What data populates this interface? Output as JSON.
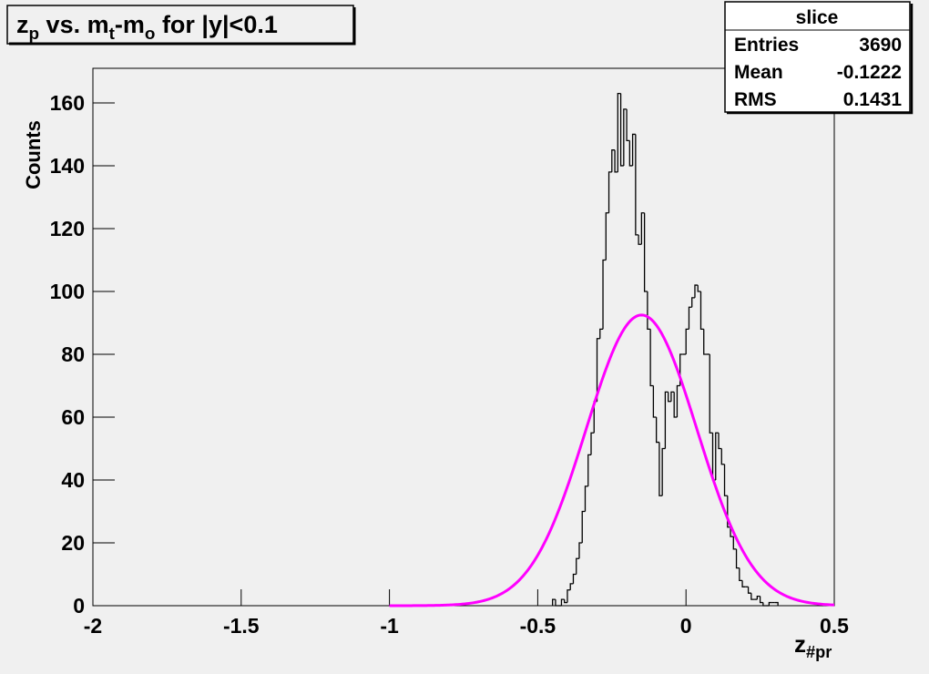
{
  "chart_data": {
    "type": "histogram",
    "title": [
      {
        "text": "z"
      },
      {
        "text": "p",
        "sub": true
      },
      {
        "text": " vs. m"
      },
      {
        "text": "t",
        "sub": true
      },
      {
        "text": "-m"
      },
      {
        "text": "o",
        "sub": true
      },
      {
        "text": " for |y|<0.1"
      }
    ],
    "x_label": [
      {
        "text": "z"
      },
      {
        "text": "#pr",
        "sub": true
      }
    ],
    "y_label": "Counts",
    "bins": [
      -0.45,
      -0.44,
      -0.43,
      -0.42,
      -0.41,
      -0.4,
      -0.39,
      -0.38,
      -0.37,
      -0.36,
      -0.35,
      -0.34,
      -0.33,
      -0.32,
      -0.31,
      -0.3,
      -0.29,
      -0.28,
      -0.27,
      -0.26,
      -0.25,
      -0.24,
      -0.23,
      -0.22,
      -0.21,
      -0.2,
      -0.19,
      -0.18,
      -0.17,
      -0.16,
      -0.15,
      -0.14,
      -0.13,
      -0.12,
      -0.11,
      -0.1,
      -0.09,
      -0.08,
      -0.07,
      -0.06,
      -0.05,
      -0.04,
      -0.03,
      -0.02,
      -0.01,
      0.0,
      0.01,
      0.02,
      0.03,
      0.04,
      0.05,
      0.06,
      0.07,
      0.08,
      0.09,
      0.1,
      0.11,
      0.12,
      0.13,
      0.14,
      0.15,
      0.16,
      0.17,
      0.18,
      0.19,
      0.2,
      0.21,
      0.22,
      0.23,
      0.24,
      0.25,
      0.26,
      0.27,
      0.28,
      0.29,
      0.3,
      0.31
    ],
    "values": [
      2,
      0,
      0,
      2,
      1,
      5,
      7,
      10,
      15,
      20,
      30,
      38,
      48,
      55,
      65,
      85,
      88,
      110,
      125,
      138,
      145,
      138,
      163,
      140,
      158,
      148,
      140,
      150,
      118,
      115,
      125,
      100,
      88,
      70,
      60,
      52,
      35,
      50,
      68,
      65,
      68,
      60,
      70,
      80,
      80,
      88,
      95,
      98,
      102,
      100,
      88,
      80,
      80,
      55,
      40,
      55,
      50,
      45,
      35,
      25,
      22,
      18,
      12,
      8,
      6,
      6,
      4,
      2,
      2,
      3,
      1,
      0,
      0,
      1,
      1,
      1
    ],
    "color": "#000000",
    "fit": {
      "constant": 92.5,
      "mean": -0.15,
      "sigma": 0.187,
      "range": [
        -1,
        0.5
      ],
      "color": "#ff00ff"
    },
    "stats": {
      "title": "slice",
      "rows": [
        {
          "label": "Entries",
          "value": 3690
        },
        {
          "label": "Mean",
          "value": -0.1222
        },
        {
          "label": "RMS",
          "value": 0.1431
        }
      ]
    },
    "xlim": [
      -2,
      0.5
    ],
    "xticks": [
      -2,
      -1.5,
      -1,
      -0.5,
      0,
      0.5
    ],
    "ylim": [
      0,
      171
    ],
    "yticks": [
      0,
      20,
      40,
      60,
      80,
      100,
      120,
      140,
      160
    ]
  }
}
